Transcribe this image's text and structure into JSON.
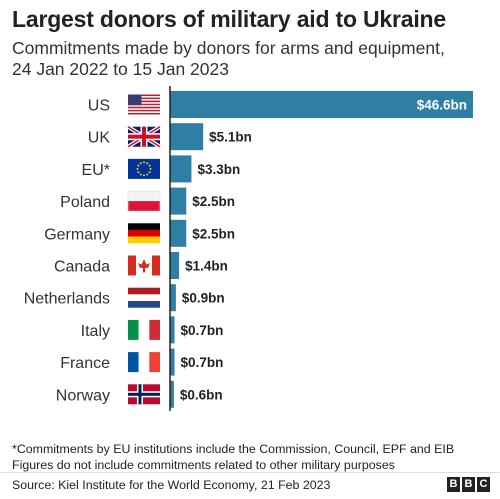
{
  "title": "Largest donors of military aid to Ukraine",
  "subtitle_line1": "Commitments made by donors for arms and equipment,",
  "subtitle_line2": "24 Jan 2022 to 15 Jan 2023",
  "footnote_line1": "*Commitments by EU institutions include the Commission, Council, EPF and EIB",
  "footnote_line2": "Figures do not include commitments related to other military purposes",
  "source": "Source: Kiel Institute for the World Economy, 21 Feb 2023",
  "logo": [
    "B",
    "B",
    "C"
  ],
  "colors": {
    "bar": "#2e7fa3",
    "axis": "#222222",
    "inside_label": "#ffffff"
  },
  "chart_data": {
    "type": "bar",
    "orientation": "horizontal",
    "unit": "$bn",
    "categories": [
      "US",
      "UK",
      "EU*",
      "Poland",
      "Germany",
      "Canada",
      "Netherlands",
      "Italy",
      "France",
      "Norway"
    ],
    "values": [
      46.6,
      5.1,
      3.3,
      2.5,
      2.5,
      1.4,
      0.9,
      0.7,
      0.7,
      0.6
    ],
    "labels": [
      "$46.6bn",
      "$5.1bn",
      "$3.3bn",
      "$2.5bn",
      "$2.5bn",
      "$1.4bn",
      "$0.9bn",
      "$0.7bn",
      "$0.7bn",
      "$0.6bn"
    ],
    "flags": [
      "us-flag",
      "uk-flag",
      "eu-flag",
      "poland-flag",
      "germany-flag",
      "canada-flag",
      "netherlands-flag",
      "italy-flag",
      "france-flag",
      "norway-flag"
    ],
    "xlim": [
      0,
      46.6
    ],
    "grid": false,
    "legend": "none"
  }
}
